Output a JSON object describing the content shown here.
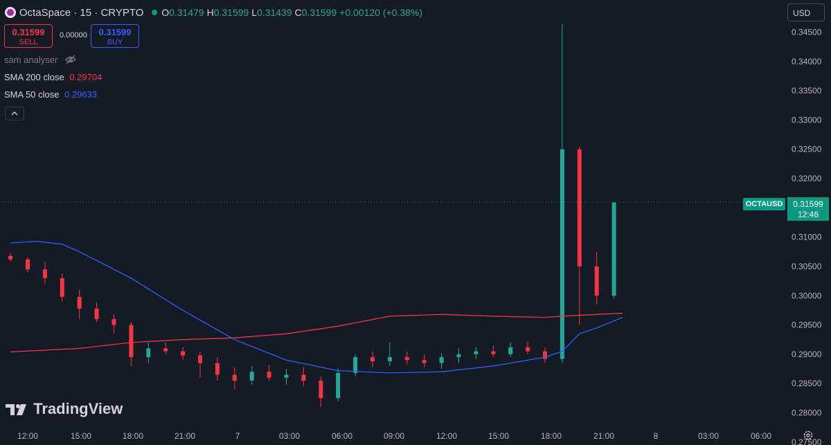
{
  "header": {
    "symbol_title": "OctaSpace · 15 · CRYPTO",
    "o_label": "O",
    "o_value": "0.31479",
    "h_label": "H",
    "h_value": "0.31599",
    "l_label": "L",
    "l_value": "0.31439",
    "c_label": "C",
    "c_value": "0.31599",
    "change": "+0.00120 (+0.38%)",
    "currency": "USD"
  },
  "trade": {
    "sell_price": "0.31599",
    "sell_label": "SELL",
    "spread": "0.00000",
    "buy_price": "0.31599",
    "buy_label": "BUY"
  },
  "indicators": {
    "script_name": "sam analyser",
    "sma200_label": "SMA 200 close",
    "sma200_value": "0.29704",
    "sma50_label": "SMA 50 close",
    "sma50_value": "0.29633"
  },
  "price_tag": {
    "symbol": "OCTAUSD",
    "price": "0.31599",
    "countdown": "12:46"
  },
  "branding": {
    "logo_text": "TradingView"
  },
  "colors": {
    "up": "#26a69a",
    "down": "#f23645",
    "sma200": "#f23645",
    "sma50": "#2962ff",
    "background": "#161a25"
  },
  "chart_data": {
    "type": "candlestick",
    "ylim": [
      0.2745,
      0.3505
    ],
    "y_ticks": [
      "0.27500",
      "0.28000",
      "0.28500",
      "0.29000",
      "0.29500",
      "0.30000",
      "0.30500",
      "0.31000",
      "0.31500",
      "0.32000",
      "0.32500",
      "0.33000",
      "0.33500",
      "0.34000",
      "0.34500"
    ],
    "x_ticks": [
      "12:00",
      "15:00",
      "18:00",
      "21:00",
      "7",
      "03:00",
      "06:00",
      "09:00",
      "12:00",
      "15:00",
      "18:00",
      "21:00",
      "8",
      "03:00",
      "06:00"
    ],
    "last_price": 0.31599,
    "candles_hourly": [
      {
        "t": "11:00",
        "o": 0.3068,
        "h": 0.3073,
        "l": 0.3058,
        "c": 0.3062
      },
      {
        "t": "12:00",
        "o": 0.3062,
        "h": 0.3066,
        "l": 0.304,
        "c": 0.3045
      },
      {
        "t": "13:00",
        "o": 0.3045,
        "h": 0.3058,
        "l": 0.302,
        "c": 0.303
      },
      {
        "t": "14:00",
        "o": 0.303,
        "h": 0.3038,
        "l": 0.299,
        "c": 0.2998
      },
      {
        "t": "15:00",
        "o": 0.2998,
        "h": 0.301,
        "l": 0.296,
        "c": 0.2978
      },
      {
        "t": "16:00",
        "o": 0.2978,
        "h": 0.2988,
        "l": 0.2955,
        "c": 0.296
      },
      {
        "t": "17:00",
        "o": 0.296,
        "h": 0.2968,
        "l": 0.2935,
        "c": 0.295
      },
      {
        "t": "18:00",
        "o": 0.295,
        "h": 0.2955,
        "l": 0.288,
        "c": 0.2895
      },
      {
        "t": "19:00",
        "o": 0.2895,
        "h": 0.292,
        "l": 0.2885,
        "c": 0.291
      },
      {
        "t": "20:00",
        "o": 0.291,
        "h": 0.292,
        "l": 0.29,
        "c": 0.2905
      },
      {
        "t": "21:00",
        "o": 0.2905,
        "h": 0.2912,
        "l": 0.289,
        "c": 0.2898
      },
      {
        "t": "22:00",
        "o": 0.2898,
        "h": 0.2905,
        "l": 0.286,
        "c": 0.2885
      },
      {
        "t": "23:00",
        "o": 0.2885,
        "h": 0.2895,
        "l": 0.2855,
        "c": 0.2865
      },
      {
        "t": "00:00",
        "o": 0.2865,
        "h": 0.2878,
        "l": 0.284,
        "c": 0.2855
      },
      {
        "t": "01:00",
        "o": 0.2855,
        "h": 0.288,
        "l": 0.2848,
        "c": 0.287
      },
      {
        "t": "02:00",
        "o": 0.287,
        "h": 0.2882,
        "l": 0.2855,
        "c": 0.286
      },
      {
        "t": "03:00",
        "o": 0.286,
        "h": 0.2875,
        "l": 0.2848,
        "c": 0.2865
      },
      {
        "t": "04:00",
        "o": 0.2865,
        "h": 0.2878,
        "l": 0.2845,
        "c": 0.2855
      },
      {
        "t": "05:00",
        "o": 0.2855,
        "h": 0.2862,
        "l": 0.281,
        "c": 0.2825
      },
      {
        "t": "06:00",
        "o": 0.2825,
        "h": 0.2875,
        "l": 0.282,
        "c": 0.2868
      },
      {
        "t": "07:00",
        "o": 0.2868,
        "h": 0.29,
        "l": 0.2862,
        "c": 0.2895
      },
      {
        "t": "08:00",
        "o": 0.2895,
        "h": 0.2905,
        "l": 0.2878,
        "c": 0.2888
      },
      {
        "t": "09:00",
        "o": 0.2888,
        "h": 0.292,
        "l": 0.288,
        "c": 0.2895
      },
      {
        "t": "10:00",
        "o": 0.2895,
        "h": 0.2905,
        "l": 0.2882,
        "c": 0.289
      },
      {
        "t": "11:00",
        "o": 0.289,
        "h": 0.29,
        "l": 0.2878,
        "c": 0.2885
      },
      {
        "t": "12:00",
        "o": 0.2885,
        "h": 0.2902,
        "l": 0.2875,
        "c": 0.2895
      },
      {
        "t": "13:00",
        "o": 0.2895,
        "h": 0.291,
        "l": 0.2885,
        "c": 0.29
      },
      {
        "t": "14:00",
        "o": 0.29,
        "h": 0.2912,
        "l": 0.2892,
        "c": 0.2905
      },
      {
        "t": "15:00",
        "o": 0.2905,
        "h": 0.2915,
        "l": 0.2895,
        "c": 0.29
      },
      {
        "t": "16:00",
        "o": 0.29,
        "h": 0.292,
        "l": 0.2895,
        "c": 0.2912
      },
      {
        "t": "17:00",
        "o": 0.2912,
        "h": 0.2922,
        "l": 0.29,
        "c": 0.2905
      },
      {
        "t": "18:00",
        "o": 0.2905,
        "h": 0.2912,
        "l": 0.2885,
        "c": 0.2892
      },
      {
        "t": "19:00",
        "o": 0.2892,
        "h": 0.3465,
        "l": 0.2885,
        "c": 0.325
      },
      {
        "t": "20:00",
        "o": 0.325,
        "h": 0.3255,
        "l": 0.295,
        "c": 0.305
      },
      {
        "t": "21:00",
        "o": 0.305,
        "h": 0.3075,
        "l": 0.2985,
        "c": 0.3
      },
      {
        "t": "22:00",
        "o": 0.3,
        "h": 0.316,
        "l": 0.2995,
        "c": 0.3159
      }
    ],
    "sma200": [
      {
        "t": "11:00",
        "v": 0.2904
      },
      {
        "t": "15:00",
        "v": 0.291
      },
      {
        "t": "18:00",
        "v": 0.292
      },
      {
        "t": "21:00",
        "v": 0.2925
      },
      {
        "t": "00:00",
        "v": 0.2928
      },
      {
        "t": "03:00",
        "v": 0.2935
      },
      {
        "t": "06:00",
        "v": 0.2948
      },
      {
        "t": "09:00",
        "v": 0.2965
      },
      {
        "t": "12:00",
        "v": 0.2968
      },
      {
        "t": "15:00",
        "v": 0.2965
      },
      {
        "t": "18:00",
        "v": 0.2963
      },
      {
        "t": "19:00",
        "v": 0.2965
      },
      {
        "t": "21:00",
        "v": 0.2968
      },
      {
        "t": "22:30",
        "v": 0.297
      }
    ],
    "sma50": [
      {
        "t": "11:00",
        "v": 0.309
      },
      {
        "t": "12:30",
        "v": 0.3093
      },
      {
        "t": "14:00",
        "v": 0.3088
      },
      {
        "t": "15:00",
        "v": 0.3075
      },
      {
        "t": "18:00",
        "v": 0.303
      },
      {
        "t": "21:00",
        "v": 0.2975
      },
      {
        "t": "00:00",
        "v": 0.2925
      },
      {
        "t": "03:00",
        "v": 0.289
      },
      {
        "t": "06:00",
        "v": 0.2872
      },
      {
        "t": "09:00",
        "v": 0.2868
      },
      {
        "t": "12:00",
        "v": 0.287
      },
      {
        "t": "15:00",
        "v": 0.288
      },
      {
        "t": "18:00",
        "v": 0.2895
      },
      {
        "t": "19:00",
        "v": 0.2905
      },
      {
        "t": "20:00",
        "v": 0.2935
      },
      {
        "t": "21:00",
        "v": 0.2945
      },
      {
        "t": "22:30",
        "v": 0.2963
      }
    ]
  }
}
